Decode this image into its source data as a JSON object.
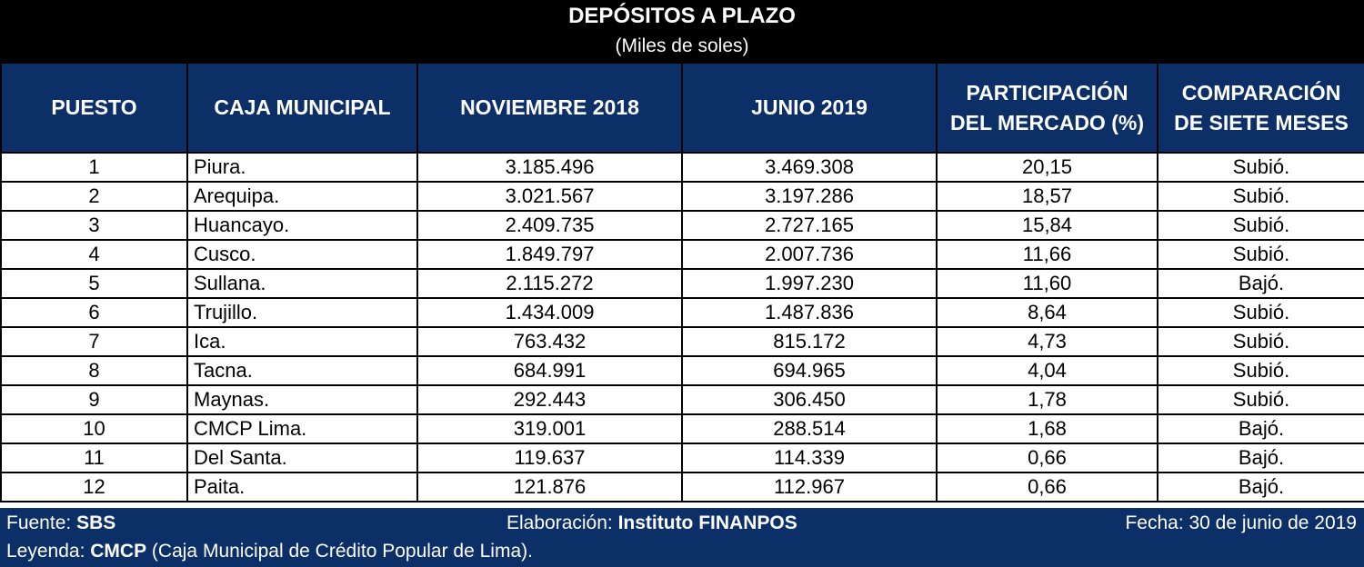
{
  "title": "DEPÓSITOS A PLAZO",
  "subtitle": "(Miles de soles)",
  "headers": {
    "puesto": "PUESTO",
    "caja": "CAJA MUNICIPAL",
    "nov2018": "NOVIEMBRE 2018",
    "jun2019": "JUNIO 2019",
    "participacion_line1": "PARTICIPACIÓN",
    "participacion_line2": "DEL MERCADO (%)",
    "comparacion_line1": "COMPARACIÓN",
    "comparacion_line2": "DE SIETE MESES"
  },
  "rows": [
    {
      "puesto": "1",
      "caja": "Piura.",
      "nov2018": "3.185.496",
      "jun2019": "3.469.308",
      "participacion": "20,15",
      "comparacion": "Subió."
    },
    {
      "puesto": "2",
      "caja": "Arequipa.",
      "nov2018": "3.021.567",
      "jun2019": "3.197.286",
      "participacion": "18,57",
      "comparacion": "Subió."
    },
    {
      "puesto": "3",
      "caja": "Huancayo.",
      "nov2018": "2.409.735",
      "jun2019": "2.727.165",
      "participacion": "15,84",
      "comparacion": "Subió."
    },
    {
      "puesto": "4",
      "caja": "Cusco.",
      "nov2018": "1.849.797",
      "jun2019": "2.007.736",
      "participacion": "11,66",
      "comparacion": "Subió."
    },
    {
      "puesto": "5",
      "caja": "Sullana.",
      "nov2018": "2.115.272",
      "jun2019": "1.997.230",
      "participacion": "11,60",
      "comparacion": "Bajó."
    },
    {
      "puesto": "6",
      "caja": "Trujillo.",
      "nov2018": "1.434.009",
      "jun2019": "1.487.836",
      "participacion": "8,64",
      "comparacion": "Subió."
    },
    {
      "puesto": "7",
      "caja": "Ica.",
      "nov2018": "763.432",
      "jun2019": "815.172",
      "participacion": "4,73",
      "comparacion": "Subió."
    },
    {
      "puesto": "8",
      "caja": "Tacna.",
      "nov2018": "684.991",
      "jun2019": "694.965",
      "participacion": "4,04",
      "comparacion": "Subió."
    },
    {
      "puesto": "9",
      "caja": "Maynas.",
      "nov2018": "292.443",
      "jun2019": "306.450",
      "participacion": "1,78",
      "comparacion": "Subió."
    },
    {
      "puesto": "10",
      "caja": "CMCP Lima.",
      "nov2018": "319.001",
      "jun2019": "288.514",
      "participacion": "1,68",
      "comparacion": "Bajó."
    },
    {
      "puesto": "11",
      "caja": "Del Santa.",
      "nov2018": "119.637",
      "jun2019": "114.339",
      "participacion": "0,66",
      "comparacion": "Bajó."
    },
    {
      "puesto": "12",
      "caja": "Paita.",
      "nov2018": "121.876",
      "jun2019": "112.967",
      "participacion": "0,66",
      "comparacion": "Bajó."
    }
  ],
  "footer": {
    "fuente_label": "Fuente: ",
    "fuente_value": "SBS",
    "elaboracion_label": "Elaboración: ",
    "elaboracion_value": "Instituto FINANPOS",
    "fecha": "Fecha: 30 de junio de 2019",
    "leyenda_label": "Leyenda: ",
    "leyenda_abbr": "CMCP",
    "leyenda_text": " (Caja Municipal de Crédito Popular de Lima)."
  },
  "colors": {
    "header_bg": "#0b2f66",
    "title_bg": "#000000"
  }
}
